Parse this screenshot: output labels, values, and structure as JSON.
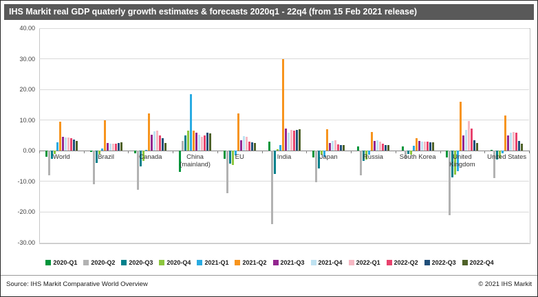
{
  "title": "IHS Markit real GDP quaterly growth estimates & forecasts 2020q1 - 22q4  (from 15 Feb 2021 release)",
  "footer": {
    "source": "Source: IHS Markit Comparative World Overview",
    "copyright": "© 2021 IHS Markit"
  },
  "colors": {
    "title_bar_bg": "#595959",
    "title_text": "#ffffff",
    "gridline": "#d9d9d9",
    "zero_line": "#808080",
    "plot_border": "#c6c6c6"
  },
  "chart_data": {
    "type": "bar",
    "title": "IHS Markit real GDP quaterly growth estimates & forecasts 2020q1 - 22q4 (from 15 Feb 2021 release)",
    "xlabel": "",
    "ylabel": "",
    "ylim": [
      -30,
      40
    ],
    "ytick_labels": [
      "40.00",
      "30.00",
      "20.00",
      "10.00",
      "0.00",
      "-10.00",
      "-20.00",
      "-30.00"
    ],
    "grid": true,
    "legend_position": "bottom",
    "categories": [
      "World",
      "Brazil",
      "Canada",
      "China (mainland)",
      "EU",
      "India",
      "Japan",
      "Russia",
      "South Korea",
      "United Kingdom",
      "United States"
    ],
    "series": [
      {
        "name": "2020-Q1",
        "color": "#00953b",
        "values": [
          -2.0,
          -0.3,
          -0.9,
          -6.8,
          -2.6,
          3.0,
          -2.1,
          1.4,
          1.4,
          -2.1,
          0.3
        ]
      },
      {
        "name": "2020-Q2",
        "color": "#b2b2b2",
        "values": [
          -8.0,
          -10.9,
          -12.7,
          3.2,
          -13.9,
          -23.9,
          -10.3,
          -8.0,
          -2.7,
          -21.0,
          -9.0
        ]
      },
      {
        "name": "2020-Q3",
        "color": "#00808b",
        "values": [
          -2.6,
          -3.9,
          -5.2,
          4.9,
          -4.2,
          -7.5,
          -5.7,
          -3.4,
          -1.1,
          -8.6,
          -2.8
        ]
      },
      {
        "name": "2020-Q4",
        "color": "#8cc63e",
        "values": [
          -1.0,
          -1.1,
          -3.2,
          6.5,
          -4.7,
          0.5,
          -1.2,
          -2.8,
          -1.2,
          -7.8,
          -2.4
        ]
      },
      {
        "name": "2021-Q1",
        "color": "#29abe2",
        "values": [
          2.8,
          0.7,
          0.3,
          18.5,
          -1.6,
          1.8,
          -1.9,
          -1.2,
          1.6,
          -6.6,
          -0.9
        ]
      },
      {
        "name": "2021-Q2",
        "color": "#f7941d",
        "values": [
          9.5,
          10.0,
          12.2,
          6.6,
          12.2,
          30.0,
          7.0,
          6.2,
          4.0,
          16.0,
          11.5
        ]
      },
      {
        "name": "2021-Q3",
        "color": "#93268f",
        "values": [
          4.6,
          2.6,
          5.3,
          5.8,
          3.4,
          7.2,
          2.6,
          3.2,
          3.1,
          4.9,
          5.0
        ]
      },
      {
        "name": "2021-Q4",
        "color": "#bfe2f1",
        "values": [
          4.4,
          2.4,
          6.4,
          5.2,
          4.7,
          6.0,
          3.3,
          3.4,
          3.0,
          6.8,
          5.9
        ]
      },
      {
        "name": "2022-Q1",
        "color": "#f6b8c3",
        "values": [
          4.4,
          2.3,
          6.6,
          4.6,
          4.5,
          6.8,
          3.4,
          2.9,
          2.9,
          9.8,
          6.1
        ]
      },
      {
        "name": "2022-Q2",
        "color": "#e8426d",
        "values": [
          4.0,
          2.4,
          4.9,
          5.0,
          3.0,
          6.6,
          2.1,
          2.3,
          2.9,
          7.3,
          5.9
        ]
      },
      {
        "name": "2022-Q3",
        "color": "#1f4e79",
        "values": [
          3.6,
          2.6,
          4.0,
          5.9,
          2.7,
          6.9,
          1.9,
          1.9,
          2.8,
          3.4,
          3.1
        ]
      },
      {
        "name": "2022-Q4",
        "color": "#4f6228",
        "values": [
          3.3,
          2.8,
          2.6,
          5.7,
          2.5,
          7.0,
          1.8,
          1.8,
          2.7,
          2.6,
          2.4
        ]
      }
    ]
  }
}
